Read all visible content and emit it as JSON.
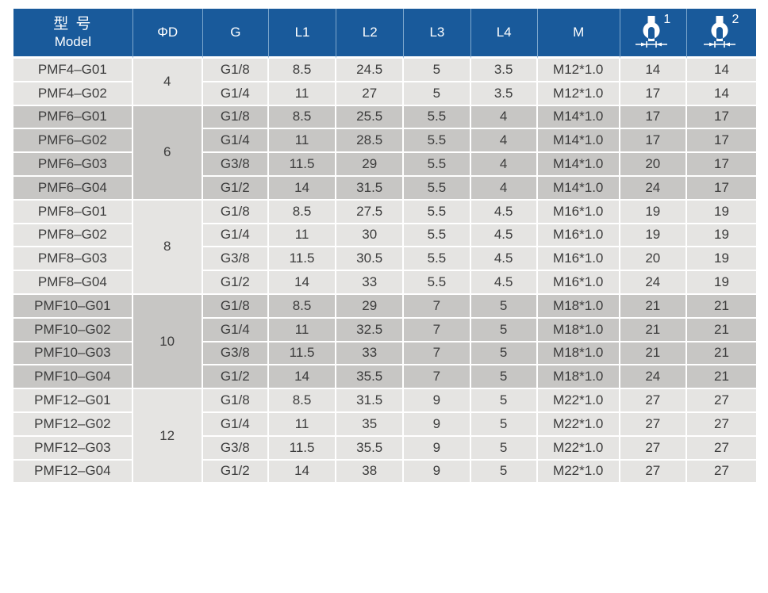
{
  "header": {
    "model_title_zh": "型 号",
    "model_title_en": "Model",
    "phi_d": "ΦD",
    "g": "G",
    "l1": "L1",
    "l2": "L2",
    "l3": "L3",
    "l4": "L4",
    "m": "M",
    "wrench1_icon": "open-end-wrench-width-icon",
    "wrench1_sup": "1",
    "wrench2_icon": "open-end-wrench-width-icon",
    "wrench2_sup": "2"
  },
  "colors": {
    "header_bg": "#195a9b",
    "header_divider": "#7da7cd",
    "header_text": "#ffffff",
    "row_light": "#e5e4e2",
    "row_dark": "#c7c6c4",
    "row_divider": "#ffffff",
    "body_text": "#3c3c3c"
  },
  "groups": [
    {
      "phi_d": "4",
      "shade": "light",
      "rows": [
        {
          "model": "PMF4–G01",
          "g": "G1/8",
          "l1": "8.5",
          "l2": "24.5",
          "l3": "5",
          "l4": "3.5",
          "m": "M12*1.0",
          "s1": "14",
          "s2": "14"
        },
        {
          "model": "PMF4–G02",
          "g": "G1/4",
          "l1": "11",
          "l2": "27",
          "l3": "5",
          "l4": "3.5",
          "m": "M12*1.0",
          "s1": "17",
          "s2": "14"
        }
      ]
    },
    {
      "phi_d": "6",
      "shade": "dark",
      "rows": [
        {
          "model": "PMF6–G01",
          "g": "G1/8",
          "l1": "8.5",
          "l2": "25.5",
          "l3": "5.5",
          "l4": "4",
          "m": "M14*1.0",
          "s1": "17",
          "s2": "17"
        },
        {
          "model": "PMF6–G02",
          "g": "G1/4",
          "l1": "11",
          "l2": "28.5",
          "l3": "5.5",
          "l4": "4",
          "m": "M14*1.0",
          "s1": "17",
          "s2": "17"
        },
        {
          "model": "PMF6–G03",
          "g": "G3/8",
          "l1": "11.5",
          "l2": "29",
          "l3": "5.5",
          "l4": "4",
          "m": "M14*1.0",
          "s1": "20",
          "s2": "17"
        },
        {
          "model": "PMF6–G04",
          "g": "G1/2",
          "l1": "14",
          "l2": "31.5",
          "l3": "5.5",
          "l4": "4",
          "m": "M14*1.0",
          "s1": "24",
          "s2": "17"
        }
      ]
    },
    {
      "phi_d": "8",
      "shade": "light",
      "rows": [
        {
          "model": "PMF8–G01",
          "g": "G1/8",
          "l1": "8.5",
          "l2": "27.5",
          "l3": "5.5",
          "l4": "4.5",
          "m": "M16*1.0",
          "s1": "19",
          "s2": "19"
        },
        {
          "model": "PMF8–G02",
          "g": "G1/4",
          "l1": "11",
          "l2": "30",
          "l3": "5.5",
          "l4": "4.5",
          "m": "M16*1.0",
          "s1": "19",
          "s2": "19"
        },
        {
          "model": "PMF8–G03",
          "g": "G3/8",
          "l1": "11.5",
          "l2": "30.5",
          "l3": "5.5",
          "l4": "4.5",
          "m": "M16*1.0",
          "s1": "20",
          "s2": "19"
        },
        {
          "model": "PMF8–G04",
          "g": "G1/2",
          "l1": "14",
          "l2": "33",
          "l3": "5.5",
          "l4": "4.5",
          "m": "M16*1.0",
          "s1": "24",
          "s2": "19"
        }
      ]
    },
    {
      "phi_d": "10",
      "shade": "dark",
      "rows": [
        {
          "model": "PMF10–G01",
          "g": "G1/8",
          "l1": "8.5",
          "l2": "29",
          "l3": "7",
          "l4": "5",
          "m": "M18*1.0",
          "s1": "21",
          "s2": "21"
        },
        {
          "model": "PMF10–G02",
          "g": "G1/4",
          "l1": "11",
          "l2": "32.5",
          "l3": "7",
          "l4": "5",
          "m": "M18*1.0",
          "s1": "21",
          "s2": "21"
        },
        {
          "model": "PMF10–G03",
          "g": "G3/8",
          "l1": "11.5",
          "l2": "33",
          "l3": "7",
          "l4": "5",
          "m": "M18*1.0",
          "s1": "21",
          "s2": "21"
        },
        {
          "model": "PMF10–G04",
          "g": "G1/2",
          "l1": "14",
          "l2": "35.5",
          "l3": "7",
          "l4": "5",
          "m": "M18*1.0",
          "s1": "24",
          "s2": "21"
        }
      ]
    },
    {
      "phi_d": "12",
      "shade": "light",
      "rows": [
        {
          "model": "PMF12–G01",
          "g": "G1/8",
          "l1": "8.5",
          "l2": "31.5",
          "l3": "9",
          "l4": "5",
          "m": "M22*1.0",
          "s1": "27",
          "s2": "27"
        },
        {
          "model": "PMF12–G02",
          "g": "G1/4",
          "l1": "11",
          "l2": "35",
          "l3": "9",
          "l4": "5",
          "m": "M22*1.0",
          "s1": "27",
          "s2": "27"
        },
        {
          "model": "PMF12–G03",
          "g": "G3/8",
          "l1": "11.5",
          "l2": "35.5",
          "l3": "9",
          "l4": "5",
          "m": "M22*1.0",
          "s1": "27",
          "s2": "27"
        },
        {
          "model": "PMF12–G04",
          "g": "G1/2",
          "l1": "14",
          "l2": "38",
          "l3": "9",
          "l4": "5",
          "m": "M22*1.0",
          "s1": "27",
          "s2": "27"
        }
      ]
    }
  ]
}
